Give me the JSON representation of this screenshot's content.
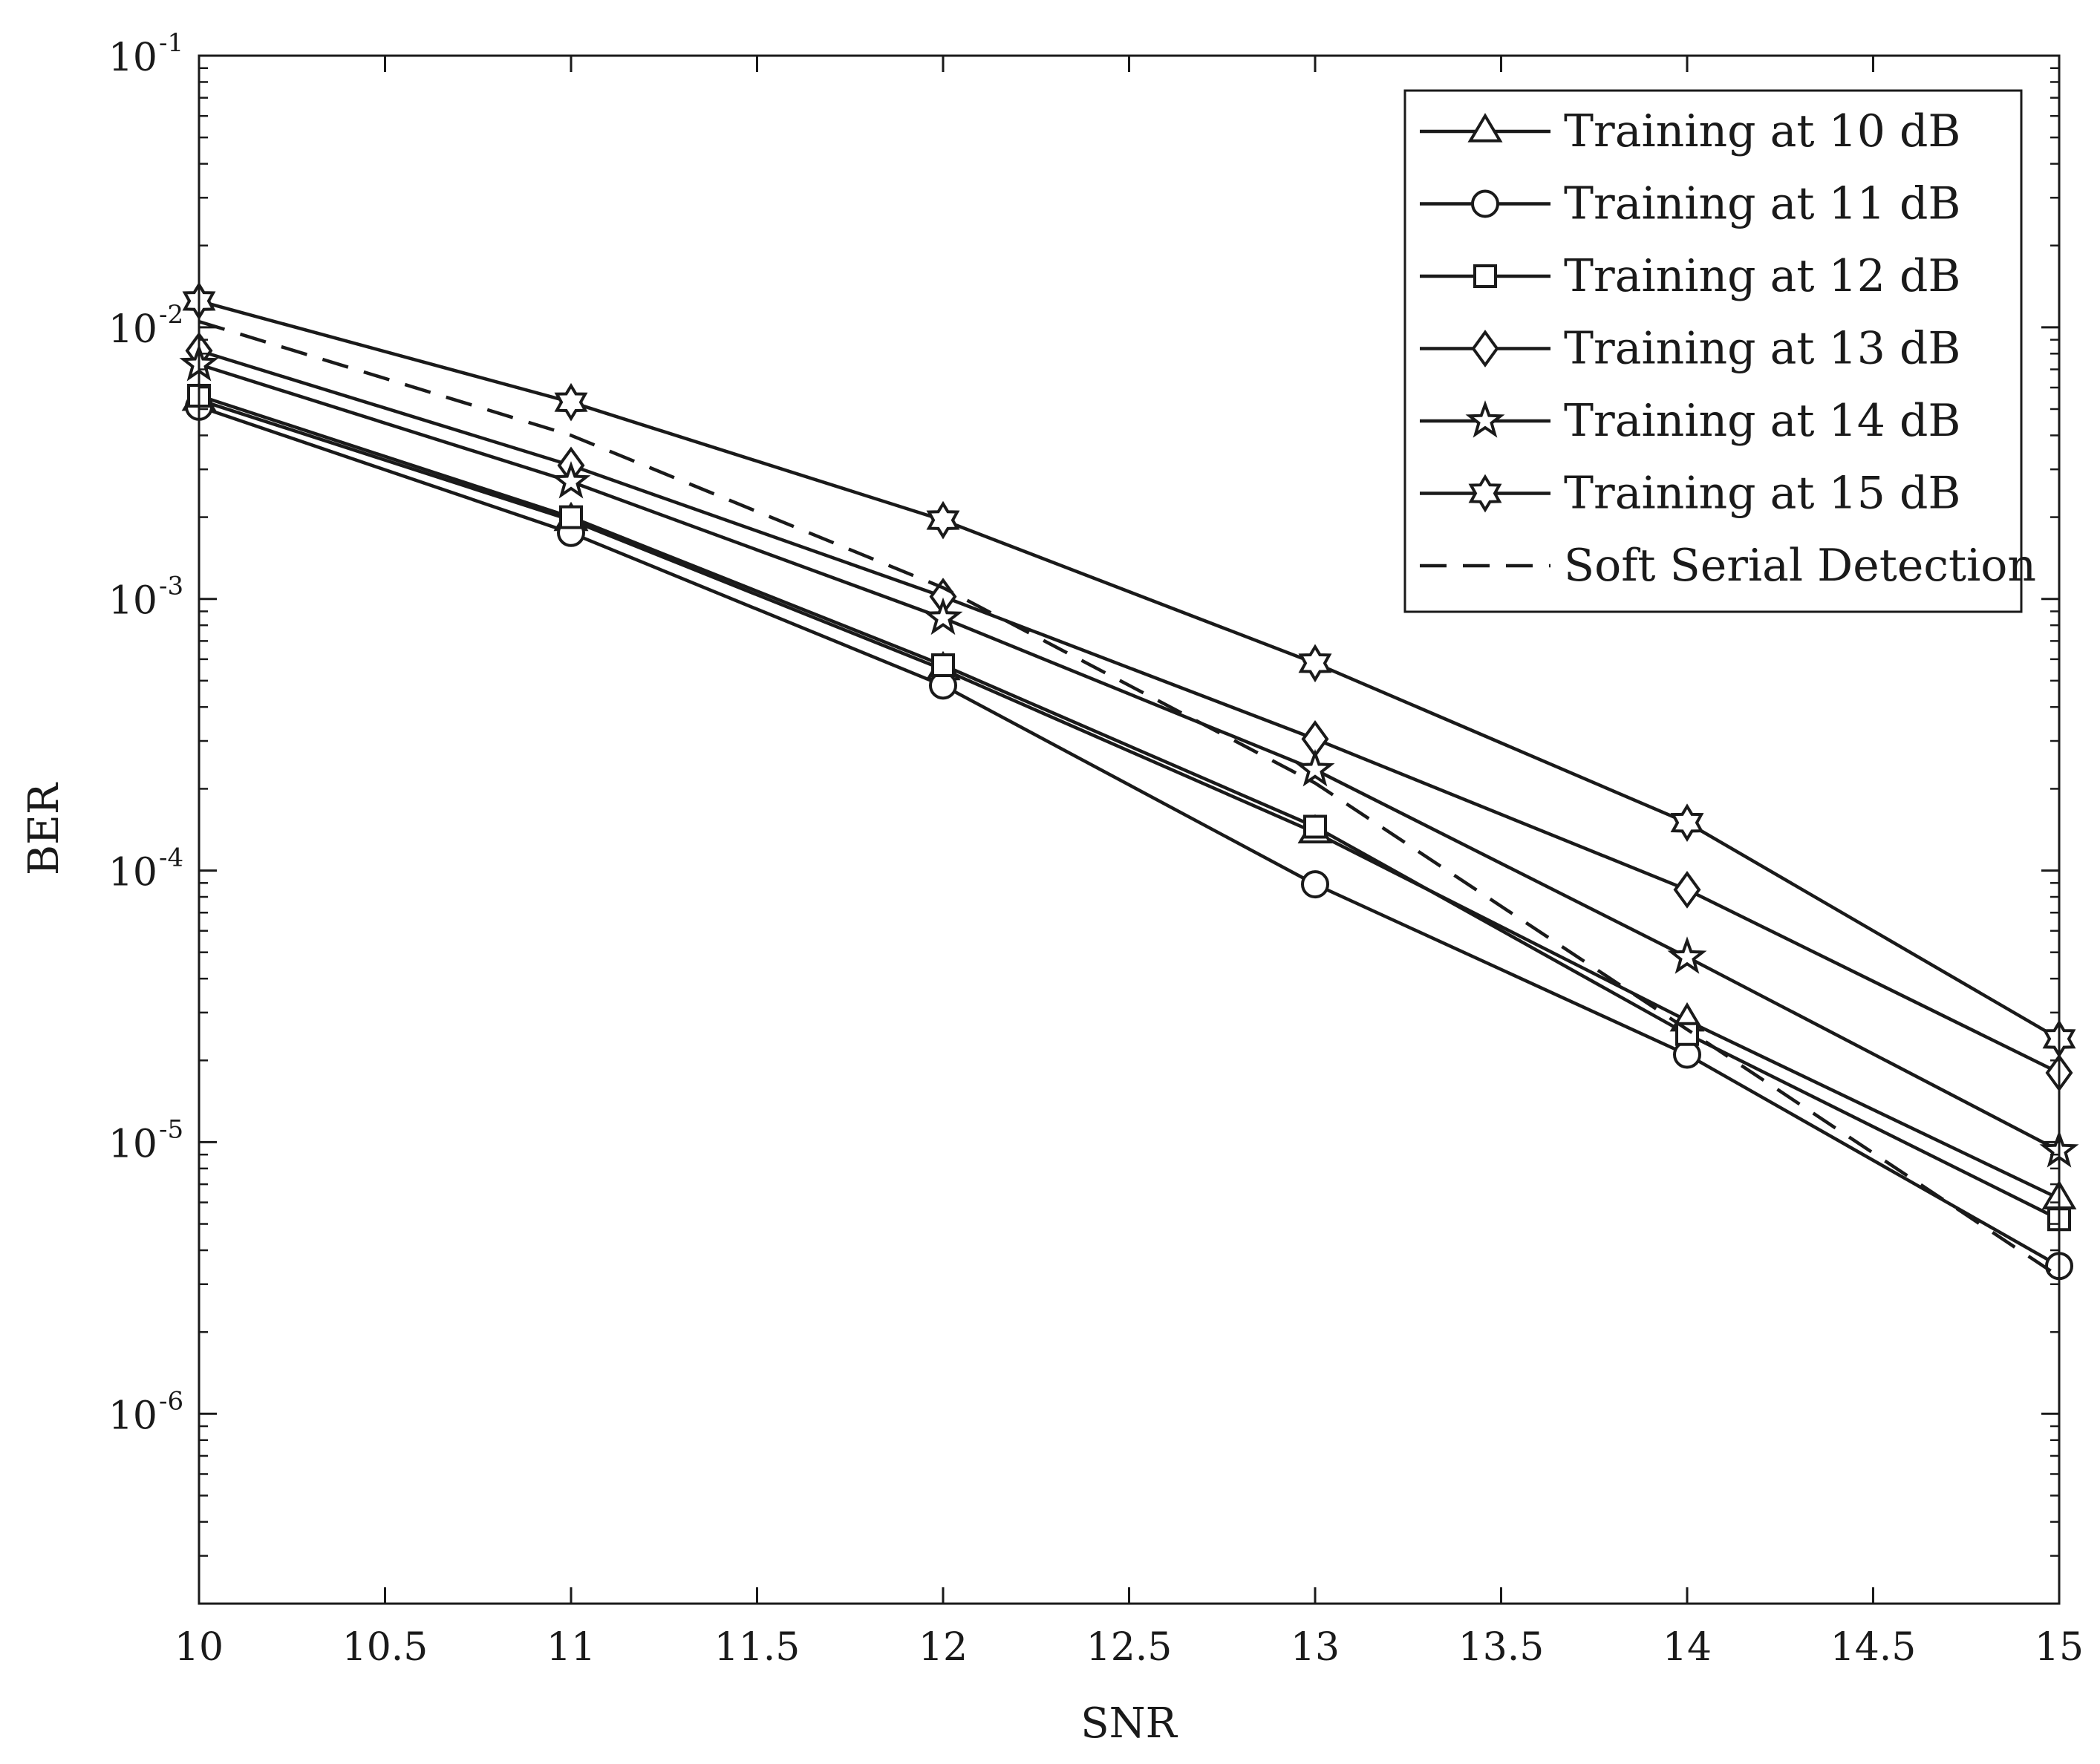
{
  "chart_data": {
    "type": "line",
    "title": "",
    "xlabel": "SNR",
    "ylabel": "BER",
    "xlim": [
      10,
      15
    ],
    "ylim": [
      2e-07,
      0.1
    ],
    "yscale": "log",
    "grid": false,
    "legend_position": "top-right",
    "x_ticks": [
      10,
      10.5,
      11,
      11.5,
      12,
      12.5,
      13,
      13.5,
      14,
      14.5,
      15
    ],
    "x_tick_labels": [
      "10",
      "10.5",
      "11",
      "11.5",
      "12",
      "12.5",
      "13",
      "13.5",
      "14",
      "14.5",
      "15"
    ],
    "y_ticks": [
      {
        "value": 1e-06,
        "base": "10",
        "exp": "-6"
      },
      {
        "value": 1e-05,
        "base": "10",
        "exp": "-5"
      },
      {
        "value": 0.0001,
        "base": "10",
        "exp": "-4"
      },
      {
        "value": 0.001,
        "base": "10",
        "exp": "-3"
      },
      {
        "value": 0.01,
        "base": "10",
        "exp": "-2"
      },
      {
        "value": 0.1,
        "base": "10",
        "exp": "-1"
      }
    ],
    "x": [
      10,
      11,
      12,
      13,
      14,
      15
    ],
    "series": [
      {
        "name": "Training at 10 dB",
        "marker": "triangle",
        "dashed": false,
        "values": [
          0.0054,
          0.00195,
          0.00055,
          0.000138,
          2.8e-05,
          6.2e-06
        ]
      },
      {
        "name": "Training at 11 dB",
        "marker": "circle",
        "dashed": false,
        "values": [
          0.0051,
          0.00175,
          0.00048,
          8.9e-05,
          2.1e-05,
          3.5e-06
        ]
      },
      {
        "name": "Training at 12 dB",
        "marker": "square",
        "dashed": false,
        "values": [
          0.0056,
          0.002,
          0.00057,
          0.000145,
          2.5e-05,
          5.2e-06
        ]
      },
      {
        "name": "Training at 13 dB",
        "marker": "diamond",
        "dashed": false,
        "values": [
          0.0082,
          0.0031,
          0.00102,
          0.000305,
          8.5e-05,
          1.8e-05
        ]
      },
      {
        "name": "Training at 14 dB",
        "marker": "star5",
        "dashed": false,
        "values": [
          0.0073,
          0.0027,
          0.00085,
          0.000235,
          4.8e-05,
          9.3e-06
        ]
      },
      {
        "name": "Training at 15 dB",
        "marker": "star6",
        "dashed": false,
        "values": [
          0.0125,
          0.0053,
          0.00195,
          0.00058,
          0.00015,
          2.4e-05
        ]
      },
      {
        "name": "Soft Serial Detection",
        "marker": "none",
        "dashed": true,
        "values": [
          0.0105,
          0.004,
          0.0011,
          0.00021,
          2.6e-05,
          3.2e-06
        ]
      }
    ]
  }
}
